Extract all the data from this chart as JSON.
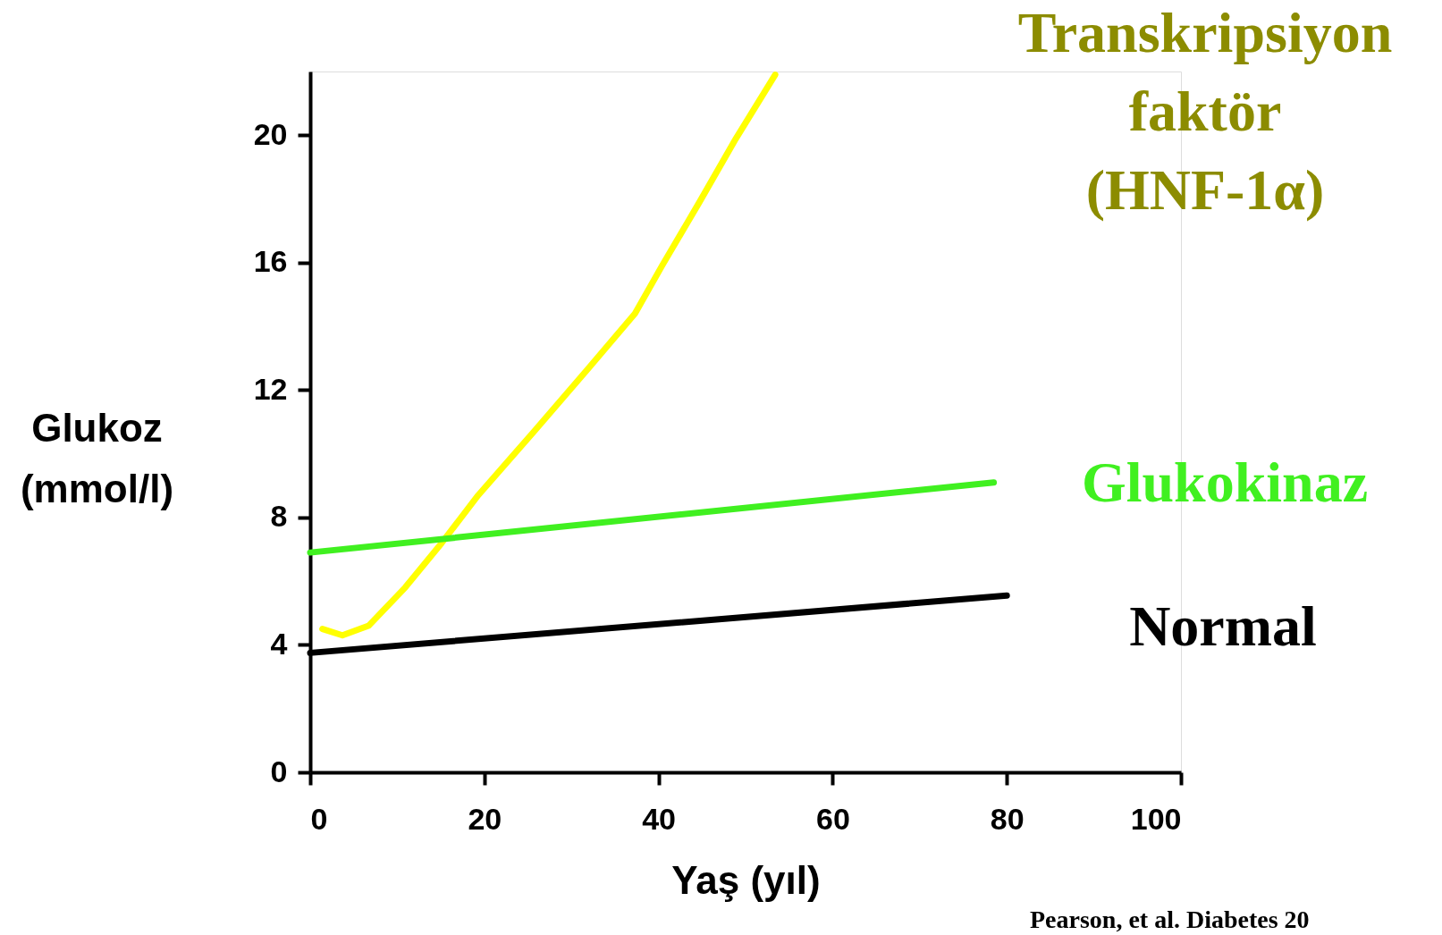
{
  "chart_data": {
    "type": "line",
    "xlabel": "Yaş (yıl)",
    "ylabel": "Glukoz (mmol/l)",
    "xlim": [
      0,
      100
    ],
    "xticks": [
      0,
      20,
      40,
      60,
      80,
      100
    ],
    "ylim": [
      0,
      22
    ],
    "yticks": [
      0,
      4,
      8,
      12,
      16,
      20
    ],
    "grid": false,
    "marker": "none",
    "line_style": "solid",
    "series": [
      {
        "name": "Transkripsiyon faktör (HNF-1α)",
        "color": "#ffff00",
        "x": [
          1.4,
          3.7,
          6.7,
          10.9,
          15.1,
          19.3,
          25.7,
          32,
          37.3,
          40.4,
          44.7,
          48.9,
          53.4
        ],
        "values": [
          4.5,
          4.3,
          4.6,
          5.8,
          7.2,
          8.7,
          10.7,
          12.7,
          14.4,
          15.9,
          17.9,
          19.9,
          21.9
        ]
      },
      {
        "name": "Glukokinaz",
        "color": "#40f020",
        "x": [
          0,
          78.5
        ],
        "values": [
          6.9,
          9.1
        ]
      },
      {
        "name": "Normal",
        "color": "#000000",
        "x": [
          0,
          80
        ],
        "values": [
          3.75,
          5.55
        ]
      }
    ],
    "annotations": [
      "Pearson, et al. Diabetes 20"
    ]
  }
}
